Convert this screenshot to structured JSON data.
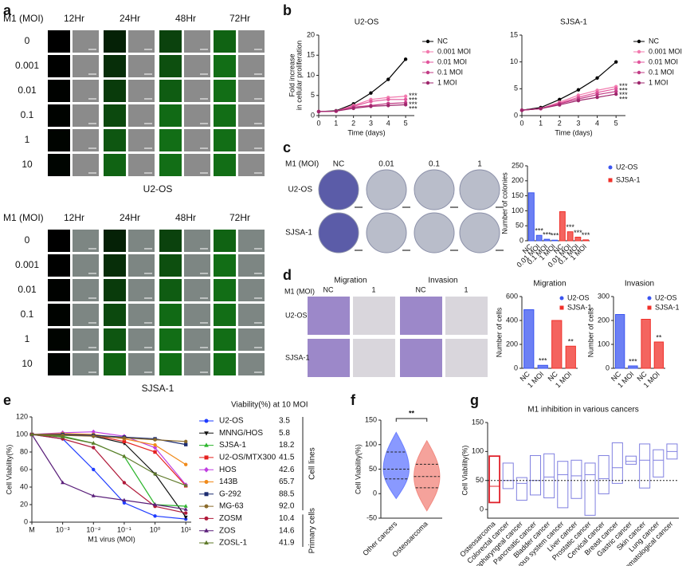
{
  "panel_labels": [
    "a",
    "b",
    "c",
    "d",
    "e",
    "f",
    "g"
  ],
  "image_grids": [
    {
      "header": "M1 (MOI)",
      "times": [
        "12Hr",
        "24Hr",
        "48Hr",
        "72Hr"
      ],
      "rows": [
        "0",
        "0.001",
        "0.01",
        "0.1",
        "1",
        "10"
      ],
      "caption": "U2-OS"
    },
    {
      "header": "M1 (MOI)",
      "times": [
        "12Hr",
        "24Hr",
        "48Hr",
        "72Hr"
      ],
      "rows": [
        "0",
        "0.001",
        "0.01",
        "0.1",
        "1",
        "10"
      ],
      "caption": "SJSA-1"
    }
  ],
  "dishes": {
    "header": "M1 (MOI)",
    "columns": [
      "NC",
      "0.01",
      "0.1",
      "1"
    ],
    "rows": [
      "U2-OS",
      "SJSA-1"
    ]
  },
  "transwell": {
    "header": "M1 (MOI)",
    "groups": [
      {
        "title": "Migration",
        "columns": [
          "NC",
          "1"
        ]
      },
      {
        "title": "Invasion",
        "columns": [
          "NC",
          "1"
        ]
      }
    ],
    "rows": [
      "U2-OS",
      "SJSA-1"
    ]
  },
  "chart_data": [
    {
      "type": "line",
      "title": "U2-OS",
      "xlabel": "Time (days)",
      "ylabel": [
        "Fold increase",
        "in cellular proliferation"
      ],
      "x": [
        0,
        1,
        2,
        3,
        4,
        5
      ],
      "xlim": [
        0,
        5.5
      ],
      "xticks": [
        0,
        1,
        2,
        3,
        4,
        5
      ],
      "ylim": [
        0,
        20
      ],
      "yticks": [
        0,
        5,
        10,
        15,
        20
      ],
      "legend": "right",
      "series": [
        {
          "name": "NC",
          "color": "#000000",
          "values": [
            1,
            1.2,
            2.9,
            5.6,
            9,
            14
          ]
        },
        {
          "name": "0.001 MOI",
          "color": "#f27aae",
          "values": [
            1,
            1.1,
            2.5,
            4,
            4.5,
            4.8
          ]
        },
        {
          "name": "0.01 MOI",
          "color": "#e2559c",
          "values": [
            1,
            1.1,
            2.3,
            3.5,
            4,
            4
          ]
        },
        {
          "name": "0.1 MOI",
          "color": "#c23c86",
          "values": [
            1,
            1.1,
            2.1,
            2.5,
            3,
            3.2
          ]
        },
        {
          "name": "1 MOI",
          "color": "#9e266c",
          "values": [
            1,
            1.1,
            1.8,
            2.3,
            2.5,
            2.7
          ]
        }
      ],
      "annotations": [
        "***",
        "***",
        "***",
        "***"
      ]
    },
    {
      "type": "line",
      "title": "SJSA-1",
      "xlabel": "Time (days)",
      "x": [
        0,
        1,
        2,
        3,
        4,
        5
      ],
      "xlim": [
        0,
        5.5
      ],
      "xticks": [
        0,
        1,
        2,
        3,
        4,
        5
      ],
      "ylim": [
        0,
        15
      ],
      "yticks": [
        0,
        5,
        10,
        15
      ],
      "legend": "right",
      "series": [
        {
          "name": "NC",
          "color": "#000000",
          "values": [
            1,
            1.5,
            3,
            4.8,
            7,
            10
          ]
        },
        {
          "name": "0.001 MOI",
          "color": "#f27aae",
          "values": [
            1,
            1.3,
            2.5,
            3.8,
            4.7,
            5.4
          ]
        },
        {
          "name": "0.01 MOI",
          "color": "#e2559c",
          "values": [
            1,
            1.3,
            2.3,
            3.4,
            4.3,
            5
          ]
        },
        {
          "name": "0.1 MOI",
          "color": "#c23c86",
          "values": [
            1,
            1.3,
            2.2,
            3.1,
            3.9,
            4.5
          ]
        },
        {
          "name": "1 MOI",
          "color": "#9e266c",
          "values": [
            1,
            1.3,
            2,
            2.8,
            3.4,
            4
          ]
        }
      ],
      "annotations": [
        "***",
        "***",
        "***",
        "***"
      ]
    },
    {
      "type": "bar",
      "ylabel": "Number of colonies",
      "ylim": [
        0,
        250
      ],
      "yticks": [
        0,
        50,
        100,
        150,
        200,
        250
      ],
      "legend": "right",
      "categories": [
        "NC",
        "0.01 MOI",
        "0.1 MOI",
        "1 MOI",
        "NC",
        "0.01 MOI",
        "0.1 MOI",
        "1 MOI"
      ],
      "series": [
        {
          "name": "U2-OS",
          "color": "#3b55f0",
          "marker": "circle",
          "values": [
            160,
            18,
            5,
            2,
            null,
            null,
            null,
            null
          ],
          "labels": [
            null,
            "***",
            "***",
            "***",
            null,
            null,
            null,
            null
          ]
        },
        {
          "name": "SJSA-1",
          "color": "#f0302a",
          "marker": "square",
          "values": [
            null,
            null,
            null,
            null,
            97,
            30,
            12,
            3
          ],
          "labels": [
            null,
            null,
            null,
            null,
            null,
            "***",
            "***",
            "***"
          ]
        }
      ]
    },
    {
      "type": "bar",
      "title": "Migration",
      "ylabel": "Number of cells",
      "ylim": [
        0,
        600
      ],
      "yticks": [
        0,
        200,
        400,
        600
      ],
      "legend": "top-right",
      "categories": [
        "NC",
        "1 MOI",
        "NC",
        "1 MOI"
      ],
      "series": [
        {
          "name": "U2-OS",
          "color": "#3b55f0",
          "marker": "circle",
          "values": [
            490,
            25,
            null,
            null
          ],
          "labels": [
            null,
            "***",
            null,
            null
          ]
        },
        {
          "name": "SJSA-1",
          "color": "#f0302a",
          "marker": "square",
          "values": [
            null,
            null,
            400,
            185
          ],
          "labels": [
            null,
            null,
            null,
            "**"
          ]
        }
      ]
    },
    {
      "type": "bar",
      "title": "Invasion",
      "ylabel": "Number of cells",
      "ylim": [
        0,
        300
      ],
      "yticks": [
        0,
        100,
        200,
        300
      ],
      "legend": "top-right",
      "categories": [
        "NC",
        "1 MOI",
        "NC",
        "1 MOI"
      ],
      "series": [
        {
          "name": "U2-OS",
          "color": "#3b55f0",
          "marker": "circle",
          "values": [
            225,
            10,
            null,
            null
          ],
          "labels": [
            null,
            "***",
            null,
            null
          ]
        },
        {
          "name": "SJSA-1",
          "color": "#f0302a",
          "marker": "square",
          "values": [
            null,
            null,
            205,
            110
          ],
          "labels": [
            null,
            null,
            null,
            "**"
          ]
        }
      ]
    },
    {
      "type": "line",
      "xlabel": "M1 virus (MOI)",
      "ylabel": "Cell Viability(%)",
      "log_x": true,
      "x": [
        0.0001,
        0.001,
        0.01,
        0.1,
        1,
        10
      ],
      "xlim": [
        0.0001,
        15
      ],
      "xticks": [
        {
          "value": 0.0001,
          "label": "M"
        },
        {
          "value": 0.001,
          "label": "10⁻³"
        },
        {
          "value": 0.01,
          "label": "10⁻²"
        },
        {
          "value": 0.1,
          "label": "10⁻¹"
        },
        {
          "value": 1,
          "label": "10⁰"
        },
        {
          "value": 10,
          "label": "10¹"
        }
      ],
      "ylim": [
        0,
        120
      ],
      "yticks": [
        0,
        20,
        40,
        60,
        80,
        100,
        120
      ],
      "legend": "table",
      "legend_title": "Viability(%) at 10 MOI",
      "series": [
        {
          "name": "U2-OS",
          "color": "#1f3cff",
          "marker": "circle",
          "values": [
            100,
            95,
            60,
            22,
            7,
            3.5
          ]
        },
        {
          "name": "MNNG/HOS",
          "color": "#111111",
          "marker": "triangle-down",
          "values": [
            100,
            100,
            98,
            90,
            55,
            5.8
          ]
        },
        {
          "name": "SJSA-1",
          "color": "#2cb52c",
          "marker": "triangle",
          "values": [
            100,
            98,
            90,
            75,
            20,
            18.2
          ]
        },
        {
          "name": "U2-OS/MTX300",
          "color": "#e4201f",
          "marker": "square",
          "values": [
            100,
            100,
            99,
            92,
            80,
            41.5
          ]
        },
        {
          "name": "HOS",
          "color": "#c03ee0",
          "marker": "diamond",
          "values": [
            100,
            102,
            103,
            98,
            85,
            42.6
          ]
        },
        {
          "name": "143B",
          "color": "#f08a1a",
          "marker": "circle",
          "values": [
            100,
            101,
            100,
            95,
            88,
            65.7
          ]
        },
        {
          "name": "G-292",
          "color": "#1c2c70",
          "marker": "square",
          "values": [
            100,
            100,
            99,
            97,
            95,
            88.5
          ]
        },
        {
          "name": "MG-63",
          "color": "#8a6a2a",
          "marker": "circle",
          "values": [
            100,
            99,
            98,
            96,
            94,
            92
          ],
          "value_labels": [
            null,
            null,
            null,
            null,
            null,
            "92.0"
          ]
        },
        {
          "name": "ZOSM",
          "color": "#b01a3a",
          "marker": "circle",
          "values": [
            100,
            95,
            85,
            45,
            18,
            10.4
          ]
        },
        {
          "name": "ZOS",
          "color": "#5a1f7a",
          "marker": "triangle",
          "values": [
            100,
            45,
            30,
            25,
            20,
            14.6
          ]
        },
        {
          "name": "ZOSL-1",
          "color": "#5f7a2a",
          "marker": "triangle",
          "values": [
            100,
            97,
            90,
            75,
            55,
            41.9
          ]
        }
      ],
      "legend_groups": [
        {
          "label": "Cell lines",
          "members": [
            "U2-OS",
            "MNNG/HOS",
            "SJSA-1",
            "U2-OS/MTX300",
            "HOS",
            "143B",
            "G-292",
            "MG-63"
          ]
        },
        {
          "label": "Primary cells",
          "members": [
            "ZOSM",
            "ZOS",
            "ZOSL-1"
          ]
        }
      ]
    },
    {
      "type": "violin",
      "ylabel": "Cell Viability(%)",
      "ylim": [
        -50,
        150
      ],
      "yticks": [
        -50,
        0,
        50,
        100,
        150
      ],
      "categories": [
        "Other cancers",
        "Osteosarcoma"
      ],
      "colors": [
        "#6b7fff",
        "#f28b82"
      ],
      "stats": [
        {
          "min": -10,
          "q1": 30,
          "median": 50,
          "q3": 85,
          "max": 125
        },
        {
          "min": -35,
          "q1": 12,
          "median": 35,
          "q3": 60,
          "max": 108
        }
      ],
      "annotation": "**"
    },
    {
      "type": "floating",
      "title": "M1 inhibition in various cancers",
      "ylabel": "Cell Viability(%)",
      "ylim": [
        -15,
        150
      ],
      "yticks": [
        0,
        50,
        100,
        150
      ],
      "reference_line": 50,
      "color": "#8080e0",
      "highlight": "Osteosarcoma",
      "highlight_color": "#e0202a",
      "categories": [
        "Osteosarcoma",
        "Colorectal cancer",
        "Nasopharyngeal cancer",
        "Pancreatic cancer",
        "Bladder cancer",
        "Nervous system cancer",
        "Liver cancer",
        "Prostatic cancer",
        "Cervical cancer",
        "Breast cancer",
        "Gastric cancer",
        "Skin cancer",
        "Lung cancer",
        "Hematological cancer"
      ],
      "low": [
        12,
        36,
        16,
        25,
        20,
        3,
        19,
        -10,
        27,
        45,
        78,
        37,
        56,
        87
      ],
      "high": [
        92,
        80,
        55,
        93,
        96,
        83,
        85,
        80,
        93,
        115,
        92,
        113,
        103,
        113
      ],
      "median": [
        40,
        50,
        45,
        50,
        56,
        60,
        58,
        60,
        53,
        72,
        83,
        85,
        85,
        100
      ]
    }
  ]
}
